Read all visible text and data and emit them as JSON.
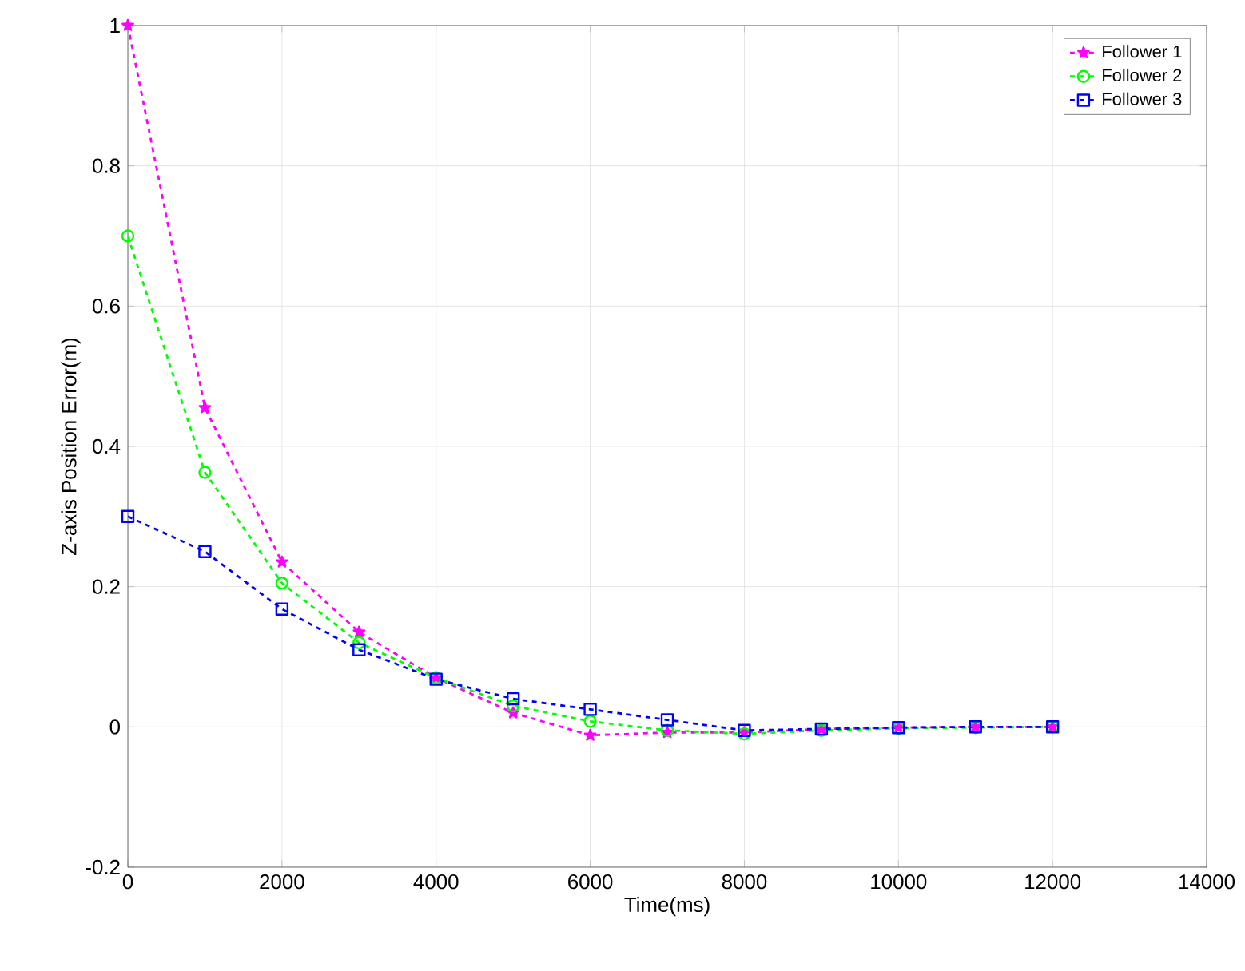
{
  "chart_data": {
    "type": "line",
    "xlabel": "Time(ms)",
    "ylabel": "Z-axis Position Error(m)",
    "x": [
      0,
      1000,
      2000,
      3000,
      4000,
      5000,
      6000,
      7000,
      8000,
      9000,
      10000,
      11000,
      12000
    ],
    "series": [
      {
        "name": "Follower 1",
        "color": "#ff00ff",
        "marker": "star",
        "line_style": "dashed",
        "values": [
          1.0,
          0.455,
          0.235,
          0.135,
          0.07,
          0.02,
          -0.012,
          -0.008,
          -0.008,
          -0.003,
          -0.001,
          0.0,
          0.0
        ]
      },
      {
        "name": "Follower 2",
        "color": "#00ff00",
        "marker": "circle",
        "line_style": "dashed",
        "values": [
          0.7,
          0.363,
          0.205,
          0.12,
          0.07,
          0.03,
          0.008,
          -0.005,
          -0.01,
          -0.005,
          -0.002,
          -0.001,
          0.0
        ]
      },
      {
        "name": "Follower 3",
        "color": "#0000ff",
        "marker": "square",
        "line_style": "dashed",
        "values": [
          0.3,
          0.25,
          0.168,
          0.11,
          0.068,
          0.04,
          0.025,
          0.01,
          -0.005,
          -0.003,
          -0.001,
          0.0,
          0.0
        ]
      }
    ],
    "xlim": [
      0,
      14000
    ],
    "ylim": [
      -0.2,
      1
    ],
    "xticks": [
      0,
      2000,
      4000,
      6000,
      8000,
      10000,
      12000,
      14000
    ],
    "yticks": [
      -0.2,
      0,
      0.2,
      0.4,
      0.6,
      0.8,
      1
    ],
    "grid": true,
    "legend": "top right"
  }
}
